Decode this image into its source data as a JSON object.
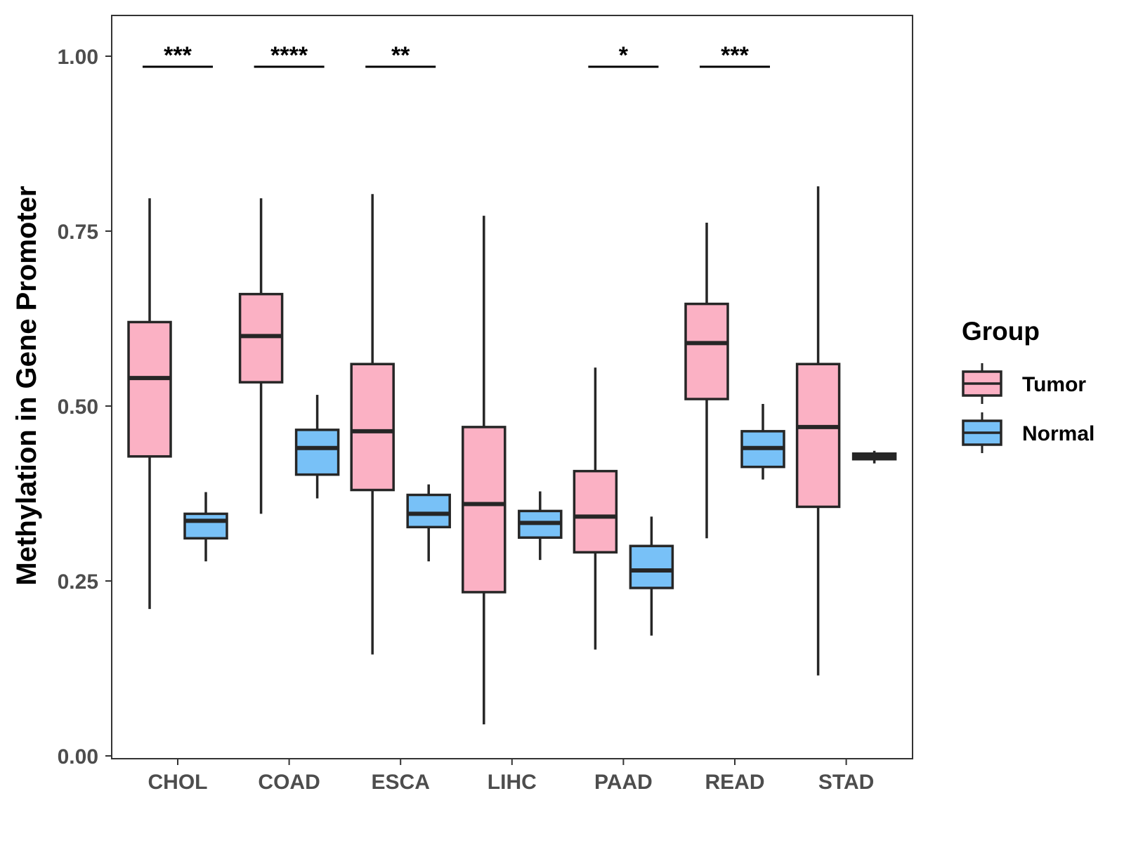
{
  "chart_data": {
    "type": "boxplot",
    "title": "",
    "xlabel": "",
    "ylabel": "Methylation in Gene Promoter",
    "ylim": [
      0.0,
      1.06
    ],
    "yticks": [
      {
        "value": 0.0,
        "label": "0.00"
      },
      {
        "value": 0.25,
        "label": "0.25"
      },
      {
        "value": 0.5,
        "label": "0.50"
      },
      {
        "value": 0.75,
        "label": "0.75"
      },
      {
        "value": 1.0,
        "label": "1.00"
      }
    ],
    "categories": [
      "CHOL",
      "COAD",
      "ESCA",
      "LIHC",
      "PAAD",
      "READ",
      "STAD"
    ],
    "legend": {
      "title": "Group",
      "position": "right",
      "entries": [
        {
          "name": "Tumor",
          "color": "#FBB1C4"
        },
        {
          "name": "Normal",
          "color": "#78C1F7"
        }
      ]
    },
    "series": [
      {
        "name": "Tumor",
        "color": "#FBB1C4",
        "boxes": [
          {
            "category": "CHOL",
            "min": 0.21,
            "q1": 0.428,
            "median": 0.54,
            "q3": 0.62,
            "max": 0.797
          },
          {
            "category": "COAD",
            "min": 0.346,
            "q1": 0.534,
            "median": 0.6,
            "q3": 0.66,
            "max": 0.797
          },
          {
            "category": "ESCA",
            "min": 0.145,
            "q1": 0.38,
            "median": 0.464,
            "q3": 0.56,
            "max": 0.803
          },
          {
            "category": "LIHC",
            "min": 0.045,
            "q1": 0.234,
            "median": 0.36,
            "q3": 0.47,
            "max": 0.772
          },
          {
            "category": "PAAD",
            "min": 0.152,
            "q1": 0.291,
            "median": 0.342,
            "q3": 0.407,
            "max": 0.555
          },
          {
            "category": "READ",
            "min": 0.311,
            "q1": 0.51,
            "median": 0.59,
            "q3": 0.646,
            "max": 0.762
          },
          {
            "category": "STAD",
            "min": 0.115,
            "q1": 0.356,
            "median": 0.47,
            "q3": 0.56,
            "max": 0.814
          }
        ]
      },
      {
        "name": "Normal",
        "color": "#78C1F7",
        "boxes": [
          {
            "category": "CHOL",
            "min": 0.278,
            "q1": 0.311,
            "median": 0.336,
            "q3": 0.346,
            "max": 0.377
          },
          {
            "category": "COAD",
            "min": 0.368,
            "q1": 0.402,
            "median": 0.44,
            "q3": 0.466,
            "max": 0.516
          },
          {
            "category": "ESCA",
            "min": 0.278,
            "q1": 0.327,
            "median": 0.346,
            "q3": 0.373,
            "max": 0.388
          },
          {
            "category": "LIHC",
            "min": 0.28,
            "q1": 0.312,
            "median": 0.333,
            "q3": 0.35,
            "max": 0.378
          },
          {
            "category": "PAAD",
            "min": 0.172,
            "q1": 0.24,
            "median": 0.265,
            "q3": 0.3,
            "max": 0.342
          },
          {
            "category": "READ",
            "min": 0.395,
            "q1": 0.413,
            "median": 0.44,
            "q3": 0.464,
            "max": 0.503
          },
          {
            "category": "STAD",
            "min": 0.418,
            "q1": 0.424,
            "median": 0.428,
            "q3": 0.432,
            "max": 0.436
          }
        ]
      }
    ],
    "annotations": [
      {
        "category": "CHOL",
        "text": "***",
        "y": 0.988
      },
      {
        "category": "COAD",
        "text": "****",
        "y": 0.988
      },
      {
        "category": "ESCA",
        "text": "**",
        "y": 0.988
      },
      {
        "category": "PAAD",
        "text": "*",
        "y": 0.988
      },
      {
        "category": "READ",
        "text": "***",
        "y": 0.988
      }
    ]
  }
}
